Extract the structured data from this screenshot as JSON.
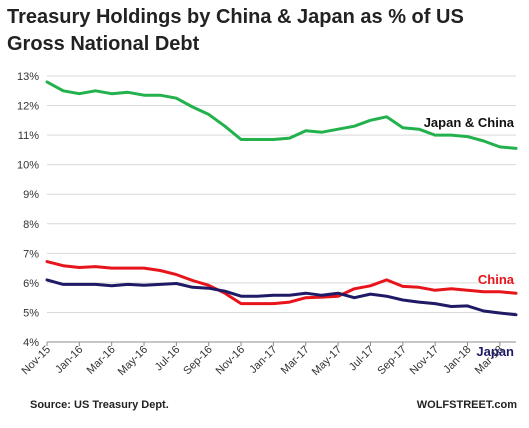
{
  "chart_data": {
    "type": "line",
    "title": "Treasury Holdings by China & Japan as % of US Gross National Debt",
    "x": [
      "Nov-15",
      "Dec-15",
      "Jan-16",
      "Feb-16",
      "Mar-16",
      "Apr-16",
      "May-16",
      "Jun-16",
      "Jul-16",
      "Aug-16",
      "Sep-16",
      "Oct-16",
      "Nov-16",
      "Dec-16",
      "Jan-17",
      "Feb-17",
      "Mar-17",
      "Apr-17",
      "May-17",
      "Jun-17",
      "Jul-17",
      "Aug-17",
      "Sep-17",
      "Oct-17",
      "Nov-17",
      "Dec-17",
      "Jan-18",
      "Feb-18",
      "Mar-18",
      "Apr-18"
    ],
    "tick_labels": [
      "Nov-15",
      "Jan-16",
      "Mar-16",
      "May-16",
      "Jul-16",
      "Sep-16",
      "Nov-16",
      "Jan-17",
      "Mar-17",
      "May-17",
      "Jul-17",
      "Sep-17",
      "Nov-17",
      "Jan-18",
      "Mar-18"
    ],
    "y_ticks": [
      "4%",
      "5%",
      "6%",
      "7%",
      "8%",
      "9%",
      "10%",
      "11%",
      "12%",
      "13%"
    ],
    "ylim": [
      4,
      13
    ],
    "grid": true,
    "series": [
      {
        "name": "Japan & China",
        "color": "#22b14c",
        "values": [
          12.8,
          12.5,
          12.4,
          12.5,
          12.4,
          12.45,
          12.35,
          12.35,
          12.25,
          11.95,
          11.7,
          11.3,
          10.85,
          10.85,
          10.85,
          10.9,
          11.15,
          11.1,
          11.2,
          11.3,
          11.5,
          11.62,
          11.25,
          11.2,
          11.0,
          11.0,
          10.95,
          10.8,
          10.6,
          10.55
        ]
      },
      {
        "name": "China",
        "color": "#e8141b",
        "values": [
          6.72,
          6.58,
          6.52,
          6.55,
          6.5,
          6.5,
          6.5,
          6.42,
          6.28,
          6.08,
          5.92,
          5.65,
          5.3,
          5.3,
          5.3,
          5.35,
          5.5,
          5.52,
          5.55,
          5.8,
          5.9,
          6.1,
          5.88,
          5.85,
          5.75,
          5.8,
          5.75,
          5.7,
          5.7,
          5.65
        ]
      },
      {
        "name": "Japan",
        "color": "#1f1a66",
        "values": [
          6.1,
          5.95,
          5.95,
          5.95,
          5.9,
          5.95,
          5.92,
          5.95,
          5.98,
          5.85,
          5.82,
          5.72,
          5.55,
          5.55,
          5.58,
          5.58,
          5.65,
          5.58,
          5.65,
          5.5,
          5.62,
          5.55,
          5.42,
          5.35,
          5.3,
          5.2,
          5.22,
          5.05,
          4.98,
          4.92
        ]
      }
    ]
  },
  "footer": {
    "source": "Source: US Treasury Dept.",
    "brand": "WOLFSTREET.com"
  }
}
